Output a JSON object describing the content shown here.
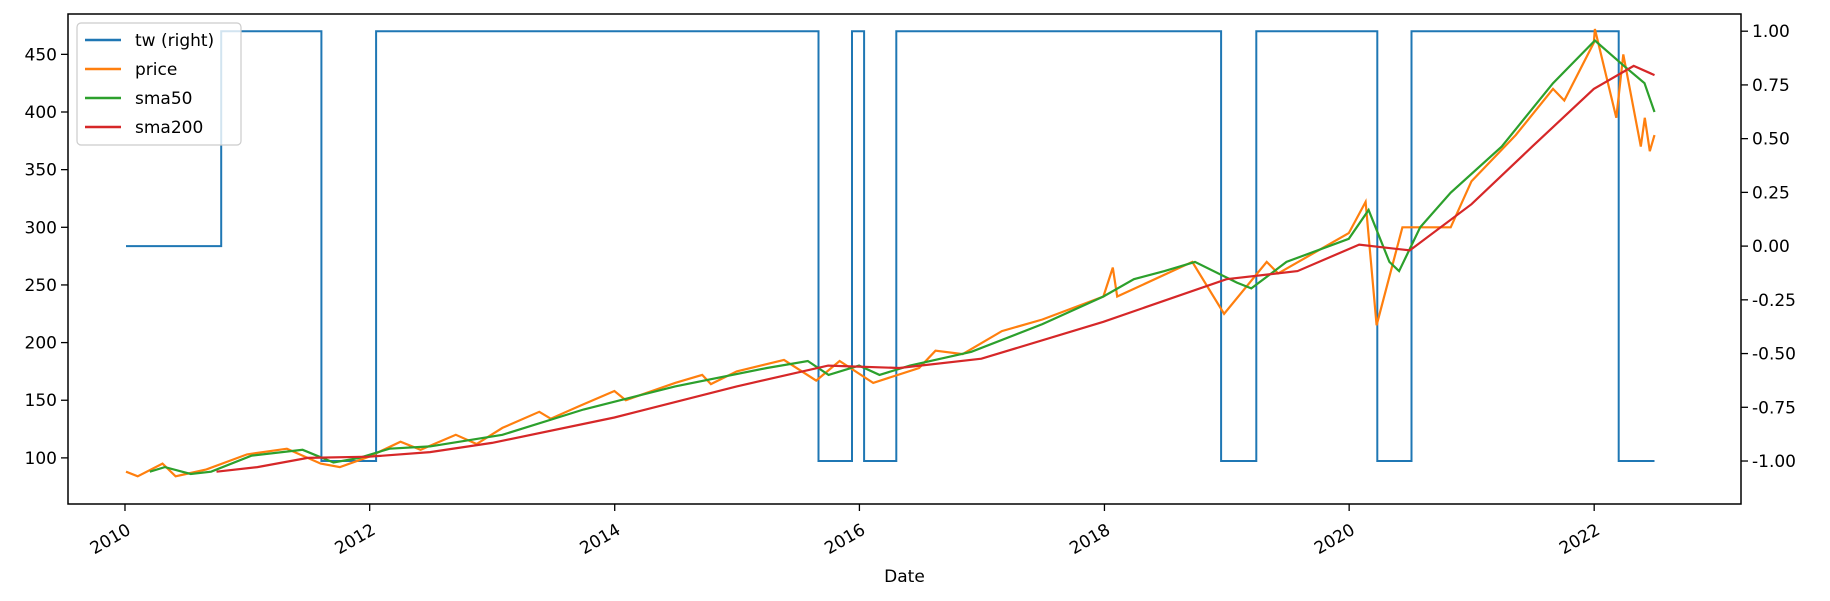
{
  "chart_data": {
    "type": "line",
    "title": "",
    "xlabel": "Date",
    "ylabel": "",
    "x_ticks": [
      "2010",
      "2012",
      "2014",
      "2016",
      "2018",
      "2020",
      "2022"
    ],
    "xlim": [
      "2009-07-15",
      "2023-03-15"
    ],
    "ylim_left": [
      60,
      485
    ],
    "ylim_right": [
      -1.2,
      1.08
    ],
    "y_ticks_left": [
      "100",
      "150",
      "200",
      "250",
      "300",
      "350",
      "400",
      "450"
    ],
    "y_ticks_right": [
      "-1.00",
      "-0.75",
      "-0.50",
      "-0.25",
      "0.00",
      "0.25",
      "0.50",
      "0.75",
      "1.00"
    ],
    "grid": false,
    "legend_position": "top-left",
    "legend": [
      "tw (right)",
      "price",
      "sma50",
      "sma200"
    ],
    "series": [
      {
        "name": "tw (right)",
        "axis": "right",
        "color": "#1f77b4",
        "step": true,
        "points": [
          [
            "2010-01-04",
            0
          ],
          [
            "2010-10-15",
            0
          ],
          [
            "2010-10-15",
            1
          ],
          [
            "2011-08-10",
            1
          ],
          [
            "2011-08-10",
            -1
          ],
          [
            "2012-01-20",
            -1
          ],
          [
            "2012-01-20",
            1
          ],
          [
            "2015-09-01",
            1
          ],
          [
            "2015-09-01",
            -1
          ],
          [
            "2015-12-10",
            -1
          ],
          [
            "2015-12-10",
            1
          ],
          [
            "2016-01-15",
            1
          ],
          [
            "2016-01-15",
            -1
          ],
          [
            "2016-04-20",
            -1
          ],
          [
            "2016-04-20",
            1
          ],
          [
            "2018-12-15",
            1
          ],
          [
            "2018-12-15",
            -1
          ],
          [
            "2019-03-30",
            -1
          ],
          [
            "2019-03-30",
            1
          ],
          [
            "2020-03-25",
            1
          ],
          [
            "2020-03-25",
            -1
          ],
          [
            "2020-07-05",
            -1
          ],
          [
            "2020-07-05",
            1
          ],
          [
            "2022-03-15",
            1
          ],
          [
            "2022-03-15",
            -1
          ],
          [
            "2022-06-30",
            -1
          ]
        ]
      },
      {
        "name": "price",
        "axis": "left",
        "color": "#ff7f0e",
        "points": [
          [
            "2010-01-04",
            88
          ],
          [
            "2010-02-08",
            84
          ],
          [
            "2010-04-23",
            95
          ],
          [
            "2010-06-01",
            84
          ],
          [
            "2010-07-02",
            86
          ],
          [
            "2010-09-01",
            90
          ],
          [
            "2010-12-31",
            103
          ],
          [
            "2011-04-29",
            108
          ],
          [
            "2011-08-08",
            95
          ],
          [
            "2011-10-04",
            92
          ],
          [
            "2011-12-30",
            101
          ],
          [
            "2012-04-02",
            114
          ],
          [
            "2012-06-01",
            107
          ],
          [
            "2012-09-14",
            120
          ],
          [
            "2012-11-15",
            112
          ],
          [
            "2013-01-31",
            126
          ],
          [
            "2013-05-21",
            140
          ],
          [
            "2013-06-24",
            134
          ],
          [
            "2013-09-18",
            145
          ],
          [
            "2013-12-31",
            158
          ],
          [
            "2014-02-03",
            150
          ],
          [
            "2014-06-30",
            165
          ],
          [
            "2014-09-19",
            172
          ],
          [
            "2014-10-15",
            164
          ],
          [
            "2014-12-31",
            175
          ],
          [
            "2015-05-21",
            185
          ],
          [
            "2015-08-25",
            167
          ],
          [
            "2015-11-03",
            184
          ],
          [
            "2016-02-11",
            165
          ],
          [
            "2016-06-27",
            178
          ],
          [
            "2016-08-15",
            193
          ],
          [
            "2016-11-04",
            190
          ],
          [
            "2017-03-01",
            210
          ],
          [
            "2017-06-30",
            220
          ],
          [
            "2017-12-29",
            240
          ],
          [
            "2018-01-26",
            265
          ],
          [
            "2018-02-08",
            240
          ],
          [
            "2018-09-20",
            270
          ],
          [
            "2018-12-24",
            225
          ],
          [
            "2019-04-30",
            270
          ],
          [
            "2019-06-03",
            260
          ],
          [
            "2019-12-31",
            295
          ],
          [
            "2020-02-19",
            322
          ],
          [
            "2020-03-23",
            215
          ],
          [
            "2020-06-08",
            300
          ],
          [
            "2020-10-30",
            300
          ],
          [
            "2020-12-31",
            340
          ],
          [
            "2021-05-12",
            380
          ],
          [
            "2021-08-31",
            420
          ],
          [
            "2021-10-04",
            410
          ],
          [
            "2021-12-31",
            460
          ],
          [
            "2022-01-03",
            472
          ],
          [
            "2022-03-08",
            395
          ],
          [
            "2022-03-29",
            450
          ],
          [
            "2022-05-20",
            370
          ],
          [
            "2022-06-01",
            395
          ],
          [
            "2022-06-16",
            366
          ],
          [
            "2022-06-30",
            380
          ]
        ]
      },
      {
        "name": "sma50",
        "axis": "left",
        "color": "#2ca02c",
        "points": [
          [
            "2010-03-16",
            88
          ],
          [
            "2010-04-30",
            92
          ],
          [
            "2010-07-16",
            86
          ],
          [
            "2010-09-15",
            88
          ],
          [
            "2011-01-14",
            102
          ],
          [
            "2011-06-15",
            107
          ],
          [
            "2011-09-15",
            96
          ],
          [
            "2011-11-30",
            100
          ],
          [
            "2012-02-29",
            108
          ],
          [
            "2012-06-29",
            110
          ],
          [
            "2013-01-31",
            120
          ],
          [
            "2013-09-30",
            142
          ],
          [
            "2014-06-30",
            162
          ],
          [
            "2015-03-31",
            178
          ],
          [
            "2015-07-31",
            184
          ],
          [
            "2015-10-01",
            172
          ],
          [
            "2015-12-31",
            180
          ],
          [
            "2016-03-01",
            172
          ],
          [
            "2016-05-31",
            180
          ],
          [
            "2016-11-30",
            192
          ],
          [
            "2017-06-30",
            216
          ],
          [
            "2017-12-29",
            240
          ],
          [
            "2018-03-30",
            255
          ],
          [
            "2018-06-29",
            262
          ],
          [
            "2018-09-28",
            270
          ],
          [
            "2019-01-31",
            252
          ],
          [
            "2019-03-15",
            247
          ],
          [
            "2019-06-28",
            270
          ],
          [
            "2019-12-31",
            290
          ],
          [
            "2020-02-28",
            315
          ],
          [
            "2020-04-30",
            270
          ],
          [
            "2020-05-29",
            262
          ],
          [
            "2020-07-31",
            300
          ],
          [
            "2020-10-30",
            330
          ],
          [
            "2021-03-31",
            370
          ],
          [
            "2021-08-31",
            425
          ],
          [
            "2022-01-03",
            462
          ],
          [
            "2022-03-31",
            440
          ],
          [
            "2022-05-31",
            425
          ],
          [
            "2022-06-30",
            400
          ]
        ]
      },
      {
        "name": "sma200",
        "axis": "left",
        "color": "#d62728",
        "points": [
          [
            "2010-10-01",
            88
          ],
          [
            "2011-01-31",
            92
          ],
          [
            "2011-06-30",
            100
          ],
          [
            "2011-12-30",
            101
          ],
          [
            "2012-06-29",
            105
          ],
          [
            "2012-12-31",
            113
          ],
          [
            "2013-12-31",
            135
          ],
          [
            "2014-12-31",
            162
          ],
          [
            "2015-09-30",
            180
          ],
          [
            "2016-04-29",
            178
          ],
          [
            "2016-12-30",
            186
          ],
          [
            "2017-12-29",
            218
          ],
          [
            "2018-12-31",
            255
          ],
          [
            "2019-07-31",
            262
          ],
          [
            "2020-01-31",
            285
          ],
          [
            "2020-06-30",
            280
          ],
          [
            "2020-12-31",
            320
          ],
          [
            "2021-06-30",
            370
          ],
          [
            "2021-12-31",
            420
          ],
          [
            "2022-04-29",
            440
          ],
          [
            "2022-06-30",
            432
          ]
        ]
      }
    ]
  }
}
